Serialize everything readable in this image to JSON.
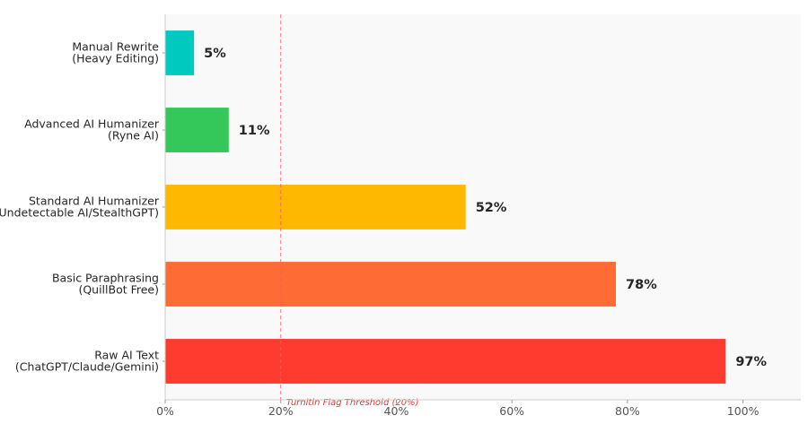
{
  "chart_data": {
    "type": "bar",
    "orientation": "horizontal",
    "categories": [
      [
        "Manual Rewrite",
        "(Heavy Editing)"
      ],
      [
        "Advanced AI Humanizer",
        "(Ryne AI)"
      ],
      [
        "Standard AI Humanizer",
        "(Undetectable AI/StealthGPT)"
      ],
      [
        "Basic Paraphrasing",
        "(QuillBot Free)"
      ],
      [
        "Raw AI Text",
        "(ChatGPT/Claude/Gemini)"
      ]
    ],
    "values": [
      5,
      11,
      52,
      78,
      97
    ],
    "value_labels": [
      "5%",
      "11%",
      "52%",
      "78%",
      "97%"
    ],
    "colors": [
      "#00c9c0",
      "#34c759",
      "#ffb800",
      "#ff6b35",
      "#ff3b30"
    ],
    "xlim": [
      0,
      110
    ],
    "xticks": [
      0,
      20,
      40,
      60,
      80,
      100
    ],
    "xtick_labels": [
      "0%",
      "20%",
      "40%",
      "60%",
      "80%",
      "100%"
    ],
    "threshold": {
      "value": 20,
      "label": "Turnitin Flag Threshold (20%)",
      "color": "#ff5b5b"
    },
    "grid": false,
    "plot_background": "#f9f9f9",
    "title": "",
    "xlabel": "",
    "ylabel": ""
  }
}
